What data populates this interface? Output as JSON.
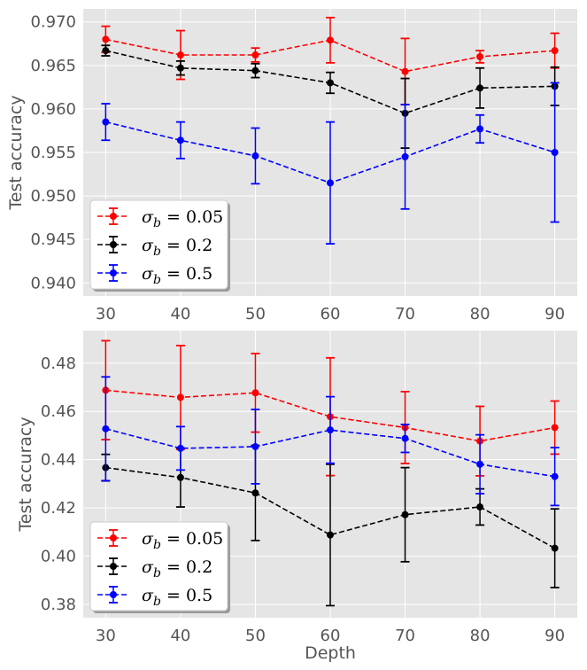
{
  "chart_data": [
    {
      "type": "line",
      "title": "",
      "xlabel": "",
      "ylabel": "Test accuracy",
      "x": [
        30,
        40,
        50,
        60,
        70,
        80,
        90
      ],
      "xlim": [
        27,
        93
      ],
      "ylim": [
        0.9385,
        0.9715
      ],
      "yticks": [
        0.94,
        0.945,
        0.95,
        0.955,
        0.96,
        0.965,
        0.97
      ],
      "ytick_labels": [
        "0.940",
        "0.945",
        "0.950",
        "0.955",
        "0.960",
        "0.965",
        "0.970"
      ],
      "xtick_labels": [
        "30",
        "40",
        "50",
        "60",
        "70",
        "80",
        "90"
      ],
      "grid": true,
      "legend": "lower-left",
      "series": [
        {
          "name": "σ_b = 0.05",
          "legend_value": "0.05",
          "color": "#ff0000",
          "values": [
            0.968,
            0.9662,
            0.9662,
            0.9679,
            0.9643,
            0.966,
            0.9667
          ],
          "err": [
            0.0015,
            0.0028,
            0.0008,
            0.0026,
            0.0038,
            0.0007,
            0.002
          ]
        },
        {
          "name": "σ_b = 0.2",
          "legend_value": "0.2",
          "color": "#000000",
          "values": [
            0.9667,
            0.9647,
            0.9644,
            0.963,
            0.9595,
            0.9624,
            0.9626
          ],
          "err": [
            0.0006,
            0.0008,
            0.0008,
            0.0012,
            0.004,
            0.0023,
            0.0022
          ]
        },
        {
          "name": "σ_b = 0.5",
          "legend_value": "0.5",
          "color": "#0000ff",
          "values": [
            0.9585,
            0.9564,
            0.9546,
            0.9515,
            0.9545,
            0.9577,
            0.955
          ],
          "err": [
            0.0021,
            0.0021,
            0.0032,
            0.007,
            0.006,
            0.0016,
            0.008
          ]
        }
      ]
    },
    {
      "type": "line",
      "title": "",
      "xlabel": "Depth",
      "ylabel": "Test accuracy",
      "x": [
        30,
        40,
        50,
        60,
        70,
        80,
        90
      ],
      "xlim": [
        27,
        93
      ],
      "ylim": [
        0.3745,
        0.4935
      ],
      "yticks": [
        0.38,
        0.4,
        0.42,
        0.44,
        0.46,
        0.48
      ],
      "ytick_labels": [
        "0.38",
        "0.40",
        "0.42",
        "0.44",
        "0.46",
        "0.48"
      ],
      "xtick_labels": [
        "30",
        "40",
        "50",
        "60",
        "70",
        "80",
        "90"
      ],
      "grid": true,
      "legend": "lower-left",
      "series": [
        {
          "name": "σ_b = 0.05",
          "legend_value": "0.05",
          "color": "#ff0000",
          "values": [
            0.4688,
            0.4658,
            0.4677,
            0.4578,
            0.4533,
            0.4477,
            0.4533
          ],
          "err": [
            0.0205,
            0.0215,
            0.0163,
            0.0244,
            0.0149,
            0.0144,
            0.011
          ]
        },
        {
          "name": "σ_b = 0.2",
          "legend_value": "0.2",
          "color": "#000000",
          "values": [
            0.4367,
            0.4326,
            0.4262,
            0.4088,
            0.4172,
            0.4204,
            0.4033
          ],
          "err": [
            0.0055,
            0.0122,
            0.0197,
            0.0293,
            0.0195,
            0.0075,
            0.0163
          ]
        },
        {
          "name": "σ_b = 0.5",
          "legend_value": "0.5",
          "color": "#0000ff",
          "values": [
            0.4528,
            0.4447,
            0.4454,
            0.4523,
            0.4488,
            0.4381,
            0.433
          ],
          "err": [
            0.0215,
            0.009,
            0.0154,
            0.0138,
            0.0058,
            0.0122,
            0.012
          ]
        }
      ]
    }
  ]
}
